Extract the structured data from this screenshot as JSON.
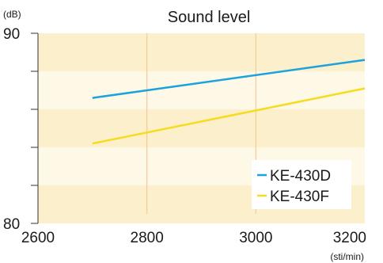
{
  "chart_data": {
    "type": "line",
    "title": "Sound level",
    "ylabel": "(dB)",
    "xlabel": "(sti/min)",
    "xlim": [
      2600,
      3200
    ],
    "ylim": [
      80,
      90
    ],
    "x_ticks": [
      2600,
      2800,
      3000,
      3200
    ],
    "y_tick_labels": [
      80,
      90
    ],
    "y_minor_ticks": [
      82,
      84,
      86,
      88
    ],
    "x_gridlines": [
      2800,
      3000
    ],
    "grid": true,
    "legend": "bottom-right",
    "series": [
      {
        "name": "KE-430D",
        "color": "#1aa3dc",
        "x": [
          2700,
          3200
        ],
        "y": [
          86.6,
          88.6
        ]
      },
      {
        "name": "KE-430F",
        "color": "#f5dc1e",
        "x": [
          2700,
          3200
        ],
        "y": [
          84.2,
          87.1
        ]
      }
    ]
  }
}
